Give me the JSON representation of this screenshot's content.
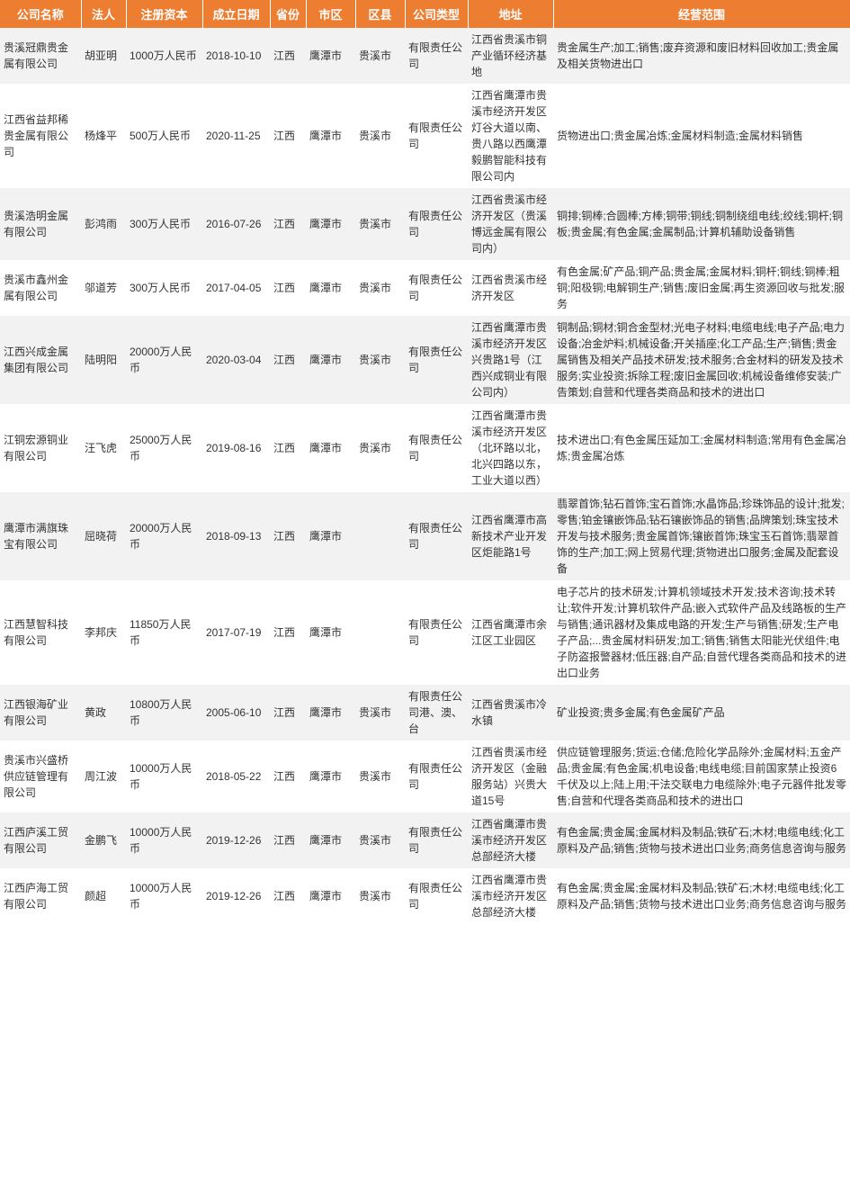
{
  "header_bg": "#ed7d31",
  "header_text_color": "#ffffff",
  "row_odd_bg": "#f2f2f2",
  "row_even_bg": "#ffffff",
  "cell_text_color": "#333333",
  "columns": [
    {
      "key": "company",
      "label": "公司名称"
    },
    {
      "key": "legal",
      "label": "法人"
    },
    {
      "key": "capital",
      "label": "注册资本"
    },
    {
      "key": "date",
      "label": "成立日期"
    },
    {
      "key": "prov",
      "label": "省份"
    },
    {
      "key": "city",
      "label": "市区"
    },
    {
      "key": "district",
      "label": "区县"
    },
    {
      "key": "type",
      "label": "公司类型"
    },
    {
      "key": "addr",
      "label": "地址"
    },
    {
      "key": "scope",
      "label": "经营范围"
    }
  ],
  "rows": [
    {
      "company": "贵溪冠鼎贵金属有限公司",
      "legal": "胡亚明",
      "capital": "1000万人民币",
      "date": "2018-10-10",
      "prov": "江西",
      "city": "鹰潭市",
      "district": "贵溪市",
      "type": "有限责任公司",
      "addr": "江西省贵溪市铜产业循环经济基地",
      "scope": "贵金属生产;加工;销售;废弃资源和废旧材料回收加工;贵金属及相关货物进出口"
    },
    {
      "company": "江西省益邦稀贵金属有限公司",
      "legal": "杨烽平",
      "capital": "500万人民币",
      "date": "2020-11-25",
      "prov": "江西",
      "city": "鹰潭市",
      "district": "贵溪市",
      "type": "有限责任公司",
      "addr": "江西省鹰潭市贵溪市经济开发区灯谷大道以南、贵八路以西鹰潭毅鹏智能科技有限公司内",
      "scope": "货物进出口;贵金属冶炼;金属材料制造;金属材料销售"
    },
    {
      "company": "贵溪浩明金属有限公司",
      "legal": "彭鸿雨",
      "capital": "300万人民币",
      "date": "2016-07-26",
      "prov": "江西",
      "city": "鹰潭市",
      "district": "贵溪市",
      "type": "有限责任公司",
      "addr": "江西省贵溪市经济开发区（贵溪博远金属有限公司内）",
      "scope": "铜排;铜棒;合圆棒;方棒;铜带;铜线;铜制绕组电线;绞线;铜杆;铜板;贵金属;有色金属;金属制品;计算机辅助设备销售"
    },
    {
      "company": "贵溪市鑫州金属有限公司",
      "legal": "邬道芳",
      "capital": "300万人民币",
      "date": "2017-04-05",
      "prov": "江西",
      "city": "鹰潭市",
      "district": "贵溪市",
      "type": "有限责任公司",
      "addr": "江西省贵溪市经济开发区",
      "scope": "有色金属;矿产品;铜产品;贵金属;金属材料;铜杆;铜线;铜棒;粗铜;阳极铜;电解铜生产;销售;废旧金属;再生资源回收与批发;服务"
    },
    {
      "company": "江西兴成金属集团有限公司",
      "legal": "陆明阳",
      "capital": "20000万人民币",
      "date": "2020-03-04",
      "prov": "江西",
      "city": "鹰潭市",
      "district": "贵溪市",
      "type": "有限责任公司",
      "addr": "江西省鹰潭市贵溪市经济开发区兴贵路1号（江西兴成铜业有限公司内）",
      "scope": "铜制品;铜材;铜合金型材;光电子材料;电缆电线;电子产品;电力设备;冶金炉料;机械设备;开关插座;化工产品;生产;销售;贵金属销售及相关产品技术研发;技术服务;合金材料的研发及技术服务;实业投资;拆除工程;废旧金属回收;机械设备维修安装;广告策划;自营和代理各类商品和技术的进出口"
    },
    {
      "company": "江铜宏源铜业有限公司",
      "legal": "汪飞虎",
      "capital": "25000万人民币",
      "date": "2019-08-16",
      "prov": "江西",
      "city": "鹰潭市",
      "district": "贵溪市",
      "type": "有限责任公司",
      "addr": "江西省鹰潭市贵溪市经济开发区（北环路以北，北兴四路以东，工业大道以西）",
      "scope": "技术进出口;有色金属压延加工;金属材料制造;常用有色金属冶炼;贵金属冶炼"
    },
    {
      "company": "鹰潭市满旗珠宝有限公司",
      "legal": "屈晓荷",
      "capital": "20000万人民币",
      "date": "2018-09-13",
      "prov": "江西",
      "city": "鹰潭市",
      "district": "",
      "type": "有限责任公司",
      "addr": "江西省鹰潭市高新技术产业开发区炬能路1号",
      "scope": "翡翠首饰;钻石首饰;宝石首饰;水晶饰品;珍珠饰品的设计;批发;零售;铂金镶嵌饰品;钻石镶嵌饰品的销售;品牌策划;珠宝技术开发与技术服务;贵金属首饰;镶嵌首饰;珠宝玉石首饰;翡翠首饰的生产;加工;网上贸易代理;货物进出口服务;金属及配套设备"
    },
    {
      "company": "江西慧智科技有限公司",
      "legal": "李邦庆",
      "capital": "11850万人民币",
      "date": "2017-07-19",
      "prov": "江西",
      "city": "鹰潭市",
      "district": "",
      "type": "有限责任公司",
      "addr": "江西省鹰潭市余江区工业园区",
      "scope": "电子芯片的技术研发;计算机领域技术开发;技术咨询;技术转让;软件开发;计算机软件产品;嵌入式软件产品及线路板的生产与销售;通讯器材及集成电路的开发;生产与销售;研发;生产电子产品;...贵金属材料研发;加工;销售;销售太阳能光伏组件;电子防盗报警器材;低压器;自产品;自营代理各类商品和技术的进出口业务"
    },
    {
      "company": "江西银海矿业有限公司",
      "legal": "黄政",
      "capital": "10800万人民币",
      "date": "2005-06-10",
      "prov": "江西",
      "city": "鹰潭市",
      "district": "贵溪市",
      "type": "有限责任公司港、澳、台",
      "addr": "江西省贵溪市冷水镇",
      "scope": "矿业投资;贵多金属;有色金属矿产品"
    },
    {
      "company": "贵溪市兴盛桥供应链管理有限公司",
      "legal": "周江波",
      "capital": "10000万人民币",
      "date": "2018-05-22",
      "prov": "江西",
      "city": "鹰潭市",
      "district": "贵溪市",
      "type": "有限责任公司",
      "addr": "江西省贵溪市经济开发区（金融服务站）兴贵大道15号",
      "scope": "供应链管理服务;货运;仓储;危险化学品除外;金属材料;五金产品;贵金属;有色金属;机电设备;电线电缆;目前国家禁止投资6千伏及以上;陆上用;干法交联电力电缆除外;电子元器件批发零售;自营和代理各类商品和技术的进出口"
    },
    {
      "company": "江西庐溪工贸有限公司",
      "legal": "金鹏飞",
      "capital": "10000万人民币",
      "date": "2019-12-26",
      "prov": "江西",
      "city": "鹰潭市",
      "district": "贵溪市",
      "type": "有限责任公司",
      "addr": "江西省鹰潭市贵溪市经济开发区总部经济大楼",
      "scope": "有色金属;贵金属;金属材料及制品;铁矿石;木材;电缆电线;化工原料及产品;销售;货物与技术进出口业务;商务信息咨询与服务"
    },
    {
      "company": "江西庐海工贸有限公司",
      "legal": "颜超",
      "capital": "10000万人民币",
      "date": "2019-12-26",
      "prov": "江西",
      "city": "鹰潭市",
      "district": "贵溪市",
      "type": "有限责任公司",
      "addr": "江西省鹰潭市贵溪市经济开发区总部经济大楼",
      "scope": "有色金属;贵金属;金属材料及制品;铁矿石;木材;电缆电线;化工原料及产品;销售;货物与技术进出口业务;商务信息咨询与服务"
    }
  ]
}
